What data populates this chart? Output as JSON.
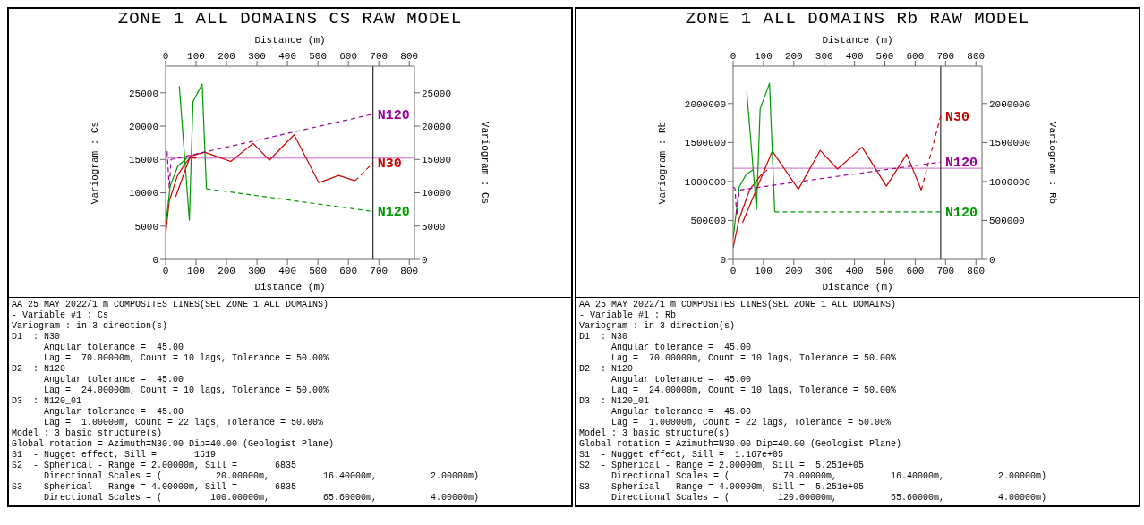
{
  "chart_data": [
    {
      "type": "line",
      "title": "ZONE 1 ALL DOMAINS CS RAW MODEL",
      "xlabel": "Distance (m)",
      "x2label": "Distance (m)",
      "ylabel": "Variogram : Cs",
      "y2label": "Variogram : Cs",
      "marker": "none",
      "xlim": [
        0,
        817
      ],
      "xticks": [
        0,
        100,
        200,
        300,
        400,
        500,
        600,
        700,
        800
      ],
      "x2lim": [
        0,
        817
      ],
      "x2ticks": [
        0,
        100,
        200,
        300,
        400,
        500,
        600,
        700,
        800
      ],
      "ylim": [
        0,
        29000
      ],
      "yticks": [
        0,
        5000,
        10000,
        15000,
        20000,
        25000
      ],
      "y2lim": [
        0,
        29000
      ],
      "y2ticks": [
        0,
        5000,
        10000,
        15000,
        20000,
        25000
      ],
      "series": [
        {
          "color": "#cc0000",
          "line_style": "solid",
          "x": [
            33,
            81,
            128,
            214,
            287,
            341,
            422,
            503,
            568,
            622
          ],
          "values": [
            9400,
            15500,
            16100,
            14700,
            17400,
            14900,
            18700,
            11500,
            12600,
            11800
          ]
        },
        {
          "name": "N30",
          "color": "#cc0000",
          "line_style": "dashed",
          "x": [
            622,
            681
          ],
          "values": [
            11800,
            14500
          ]
        },
        {
          "color": "#cc0000",
          "line_style": "solid",
          "x": [
            0,
            12,
            39,
            63,
            81,
            100
          ],
          "values": [
            3700,
            8800,
            12600,
            14300,
            15300,
            15200
          ]
        },
        {
          "color": "#009900",
          "line_style": "solid",
          "x": [
            0,
            15,
            40,
            70
          ],
          "values": [
            5000,
            11000,
            14000,
            15200
          ]
        },
        {
          "color": "#009900",
          "line_style": "solid",
          "x": [
            45,
            78,
            90,
            120,
            134
          ],
          "values": [
            26000,
            5900,
            23700,
            26300,
            10600
          ]
        },
        {
          "name": "N120",
          "color": "#009900",
          "line_style": "dashed",
          "x": [
            134,
            681
          ],
          "values": [
            10600,
            7200
          ]
        },
        {
          "name": "N120",
          "color": "#990099",
          "line_style": "dashed",
          "x": [
            0,
            5,
            12,
            18,
            128,
            681
          ],
          "values": [
            15000,
            16200,
            10700,
            15000,
            16100,
            21800
          ]
        }
      ],
      "ref_lines": [
        {
          "axis": "y",
          "value": 15200,
          "color": "#cc66cc",
          "line_style": "solid"
        },
        {
          "axis": "x",
          "value": 681,
          "color": "#000000",
          "line_style": "solid"
        }
      ],
      "annotations": [
        "AA 25 MAY 2022/1 m COMPOSITES LINES(SEL ZONE 1 ALL DOMAINS)",
        "- Variable #1 : Cs",
        "Variogram : in 3 direction(s)",
        "D1  : N30",
        "      Angular tolerance =  45.00",
        "      Lag =  70.00000m, Count = 10 lags, Tolerance = 50.00%",
        "D2  : N120",
        "      Angular tolerance =  45.00",
        "      Lag =  24.00000m, Count = 10 lags, Tolerance = 50.00%",
        "D3  : N120_01",
        "      Angular tolerance =  45.00",
        "      Lag =  1.00000m, Count = 22 lags, Tolerance = 50.00%",
        "Model : 3 basic structure(s)",
        "Global rotation = Azimuth=N30.00 Dip=40.00 (Geologist Plane)",
        "S1  - Nugget effect, Sill =       1519",
        "S2  - Spherical - Range = 2.00000m, Sill =       6835",
        "      Directional Scales = (          20.00000m,          16.40000m,          2.00000m)",
        "S3  - Spherical - Range = 4.00000m, Sill =       6835",
        "      Directional Scales = (         100.00000m,          65.60000m,          4.00000m)"
      ]
    },
    {
      "type": "line",
      "title": "ZONE 1 ALL DOMAINS Rb RAW MODEL",
      "xlabel": "Distance (m)",
      "x2label": "Distance (m)",
      "ylabel": "Variogram : Rb",
      "y2label": "Variogram : Rb",
      "marker": "none",
      "xlim": [
        0,
        820
      ],
      "xticks": [
        0,
        100,
        200,
        300,
        400,
        500,
        600,
        700,
        800
      ],
      "x2lim": [
        0,
        820
      ],
      "x2ticks": [
        0,
        100,
        200,
        300,
        400,
        500,
        600,
        700,
        800
      ],
      "ylim": [
        0,
        2480000
      ],
      "yticks": [
        0,
        500000,
        1000000,
        1500000,
        2000000
      ],
      "y2lim": [
        0,
        2480000
      ],
      "y2ticks": [
        0,
        500000,
        1000000,
        1500000,
        2000000
      ],
      "series": [
        {
          "color": "#cc0000",
          "line_style": "solid",
          "x": [
            31,
            129,
            215,
            287,
            344,
            425,
            505,
            572,
            620
          ],
          "values": [
            470000,
            1390000,
            900000,
            1400000,
            1160000,
            1440000,
            940000,
            1350000,
            890000
          ]
        },
        {
          "name": "N30",
          "color": "#cc0000",
          "line_style": "dashed",
          "x": [
            620,
            684
          ],
          "values": [
            890000,
            1840000
          ]
        },
        {
          "color": "#cc0000",
          "line_style": "solid",
          "x": [
            0,
            20,
            54,
            89,
            112
          ],
          "values": [
            150000,
            520000,
            890000,
            1070000,
            1150000
          ]
        },
        {
          "color": "#009900",
          "line_style": "solid",
          "x": [
            0,
            20,
            43,
            66
          ],
          "values": [
            270000,
            930000,
            1090000,
            1150000
          ]
        },
        {
          "color": "#009900",
          "line_style": "solid",
          "x": [
            45,
            77,
            89,
            120,
            137
          ],
          "values": [
            2150000,
            640000,
            1930000,
            2260000,
            610000
          ]
        },
        {
          "name": "N120",
          "color": "#009900",
          "line_style": "dashed",
          "x": [
            137,
            684
          ],
          "values": [
            610000,
            610000
          ]
        },
        {
          "name": "N120",
          "color": "#990099",
          "line_style": "dashed",
          "x": [
            0,
            6,
            12,
            20,
            684
          ],
          "values": [
            930000,
            910000,
            560000,
            890000,
            1250000
          ]
        }
      ],
      "ref_lines": [
        {
          "axis": "y",
          "value": 1170000,
          "color": "#cc66cc",
          "line_style": "solid"
        },
        {
          "axis": "x",
          "value": 684,
          "color": "#000000",
          "line_style": "solid"
        }
      ],
      "annotations": [
        "AA 25 MAY 2022/1 m COMPOSITES LINES(SEL ZONE 1 ALL DOMAINS)",
        "- Variable #1 : Rb",
        "Variogram : in 3 direction(s)",
        "D1  : N30",
        "      Angular tolerance =  45.00",
        "      Lag =  70.00000m, Count = 10 lags, Tolerance = 50.00%",
        "D2  : N120",
        "      Angular tolerance =  45.00",
        "      Lag =  24.00000m, Count = 10 lags, Tolerance = 50.00%",
        "D3  : N120_01",
        "      Angular tolerance =  45.00",
        "      Lag =  1.00000m, Count = 22 lags, Tolerance = 50.00%",
        "Model : 3 basic structure(s)",
        "Global rotation = Azimuth=N30.00 Dip=40.00 (Geologist Plane)",
        "S1  - Nugget effect, Sill =  1.167e+05",
        "S2  - Spherical - Range = 2.00000m, Sill =  5.251e+05",
        "      Directional Scales = (          70.00000m,          16.40000m,          2.00000m)",
        "S3  - Spherical - Range = 4.00000m, Sill =  5.251e+05",
        "      Directional Scales = (         120.00000m,          65.60000m,          4.00000m)"
      ]
    }
  ]
}
